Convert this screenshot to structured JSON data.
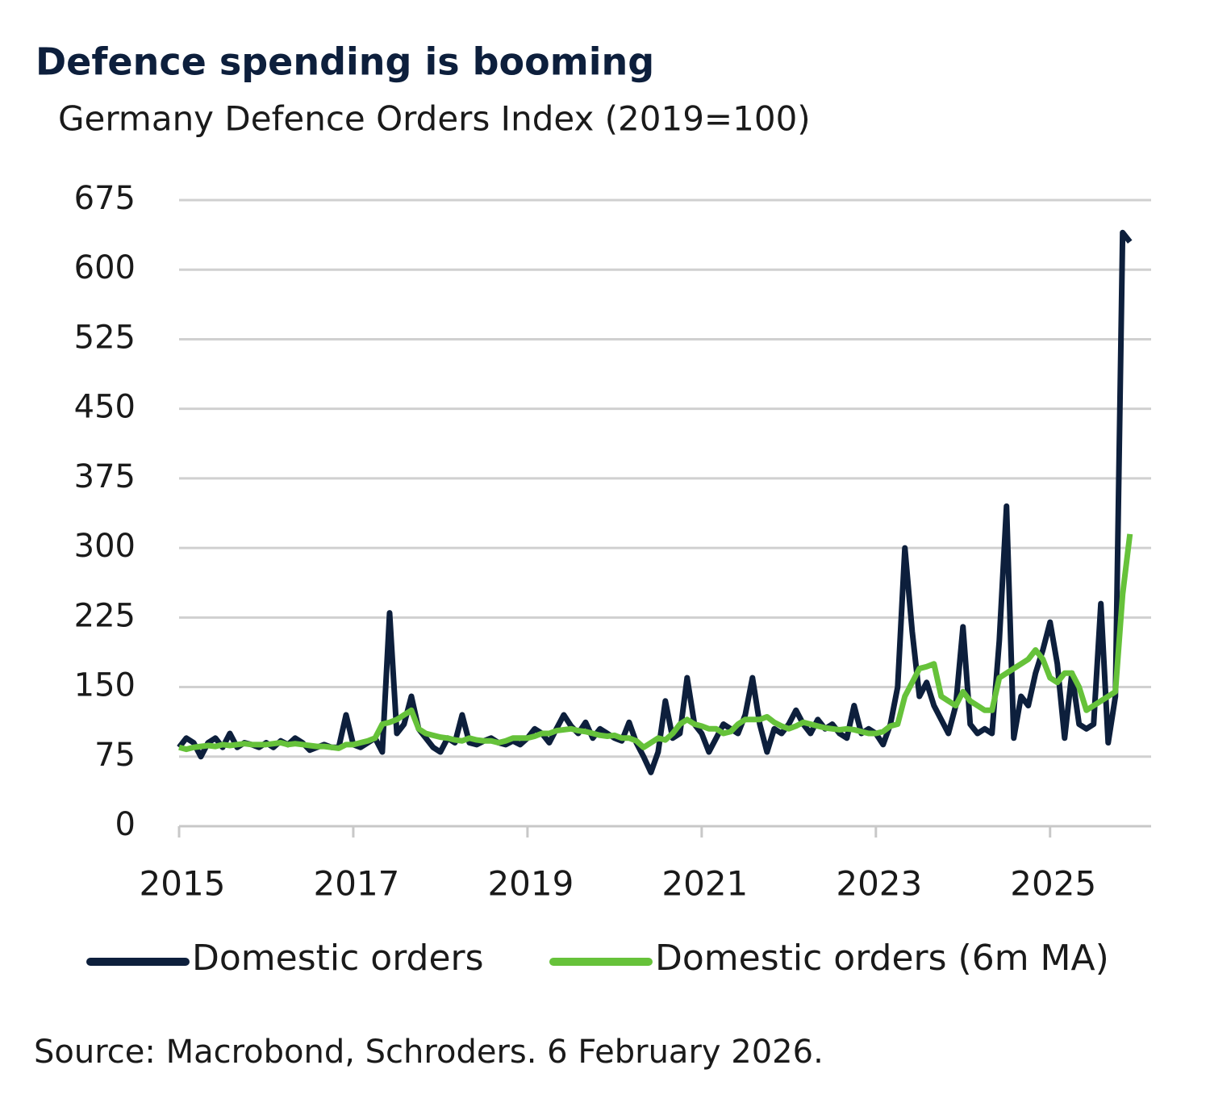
{
  "chart_data": {
    "type": "line",
    "title": "Defence spending is booming",
    "subtitle": "Germany Defence Orders Index (2019=100)",
    "source": "Source: Macrobond, Schroders. 6 February 2026.",
    "x": [
      2015,
      2015.083,
      2015.167,
      2015.25,
      2015.333,
      2015.417,
      2015.5,
      2015.583,
      2015.667,
      2015.75,
      2015.833,
      2015.917,
      2016,
      2016.083,
      2016.167,
      2016.25,
      2016.333,
      2016.417,
      2016.5,
      2016.583,
      2016.667,
      2016.75,
      2016.833,
      2016.917,
      2017,
      2017.083,
      2017.167,
      2017.25,
      2017.333,
      2017.417,
      2017.5,
      2017.583,
      2017.667,
      2017.75,
      2017.833,
      2017.917,
      2018,
      2018.083,
      2018.167,
      2018.25,
      2018.333,
      2018.417,
      2018.5,
      2018.583,
      2018.667,
      2018.75,
      2018.833,
      2018.917,
      2019,
      2019.083,
      2019.167,
      2019.25,
      2019.333,
      2019.417,
      2019.5,
      2019.583,
      2019.667,
      2019.75,
      2019.833,
      2019.917,
      2020,
      2020.083,
      2020.167,
      2020.25,
      2020.333,
      2020.417,
      2020.5,
      2020.583,
      2020.667,
      2020.75,
      2020.833,
      2020.917,
      2021,
      2021.083,
      2021.167,
      2021.25,
      2021.333,
      2021.417,
      2021.5,
      2021.583,
      2021.667,
      2021.75,
      2021.833,
      2021.917,
      2022,
      2022.083,
      2022.167,
      2022.25,
      2022.333,
      2022.417,
      2022.5,
      2022.583,
      2022.667,
      2022.75,
      2022.833,
      2022.917,
      2023,
      2023.083,
      2023.167,
      2023.25,
      2023.333,
      2023.417,
      2023.5,
      2023.583,
      2023.667,
      2023.75,
      2023.833,
      2023.917,
      2024,
      2024.083,
      2024.167,
      2024.25,
      2024.333,
      2024.417,
      2024.5,
      2024.583,
      2024.667,
      2024.75,
      2024.833,
      2024.917,
      2025,
      2025.083,
      2025.167,
      2025.25,
      2025.333,
      2025.417,
      2025.5,
      2025.583,
      2025.667,
      2025.75,
      2025.833,
      2025.917
    ],
    "series": [
      {
        "name": "Domestic orders",
        "color": "#0d1f3c",
        "values": [
          85,
          95,
          90,
          75,
          90,
          95,
          85,
          100,
          85,
          90,
          88,
          85,
          90,
          85,
          92,
          88,
          95,
          90,
          82,
          85,
          88,
          85,
          85,
          120,
          88,
          85,
          90,
          95,
          80,
          230,
          100,
          110,
          140,
          105,
          95,
          85,
          80,
          95,
          90,
          120,
          90,
          88,
          92,
          95,
          90,
          88,
          92,
          88,
          95,
          105,
          100,
          90,
          105,
          120,
          108,
          100,
          112,
          95,
          105,
          100,
          95,
          92,
          112,
          90,
          75,
          58,
          80,
          135,
          95,
          100,
          160,
          110,
          100,
          80,
          95,
          110,
          105,
          100,
          120,
          160,
          110,
          80,
          105,
          100,
          110,
          125,
          110,
          100,
          115,
          105,
          110,
          100,
          95,
          130,
          100,
          105,
          100,
          88,
          110,
          150,
          300,
          210,
          140,
          155,
          130,
          115,
          100,
          130,
          215,
          110,
          100,
          105,
          100,
          200,
          345,
          95,
          140,
          130,
          165,
          190,
          220,
          175,
          95,
          165,
          110,
          105,
          110,
          240,
          90,
          140,
          640,
          630
        ]
      },
      {
        "name": "Domestic orders (6m MA)",
        "color": "#66c23a",
        "values": [
          85,
          83,
          85,
          86,
          87,
          86,
          88,
          87,
          88,
          89,
          88,
          88,
          88,
          89,
          90,
          88,
          89,
          88,
          87,
          86,
          86,
          85,
          84,
          88,
          88,
          90,
          92,
          95,
          110,
          112,
          115,
          120,
          125,
          105,
          100,
          98,
          96,
          95,
          93,
          92,
          95,
          93,
          92,
          92,
          90,
          92,
          95,
          95,
          95,
          97,
          100,
          100,
          103,
          104,
          105,
          103,
          102,
          100,
          98,
          97,
          98,
          95,
          95,
          92,
          85,
          90,
          95,
          93,
          100,
          110,
          115,
          110,
          108,
          105,
          105,
          100,
          102,
          110,
          115,
          115,
          115,
          118,
          112,
          108,
          105,
          108,
          112,
          110,
          108,
          106,
          105,
          104,
          105,
          104,
          102,
          100,
          100,
          102,
          108,
          110,
          140,
          155,
          170,
          172,
          175,
          140,
          135,
          130,
          145,
          135,
          130,
          125,
          125,
          160,
          165,
          170,
          175,
          180,
          190,
          180,
          160,
          155,
          165,
          165,
          150,
          125,
          130,
          135,
          140,
          145,
          250,
          315
        ]
      }
    ],
    "xlim": [
      2015,
      2026.16
    ],
    "xticks": [
      2015,
      2017,
      2019,
      2021,
      2023,
      2025
    ],
    "ylim": [
      0,
      675
    ],
    "yticks": [
      0,
      75,
      150,
      225,
      300,
      375,
      450,
      525,
      600,
      675
    ],
    "grid": true
  }
}
